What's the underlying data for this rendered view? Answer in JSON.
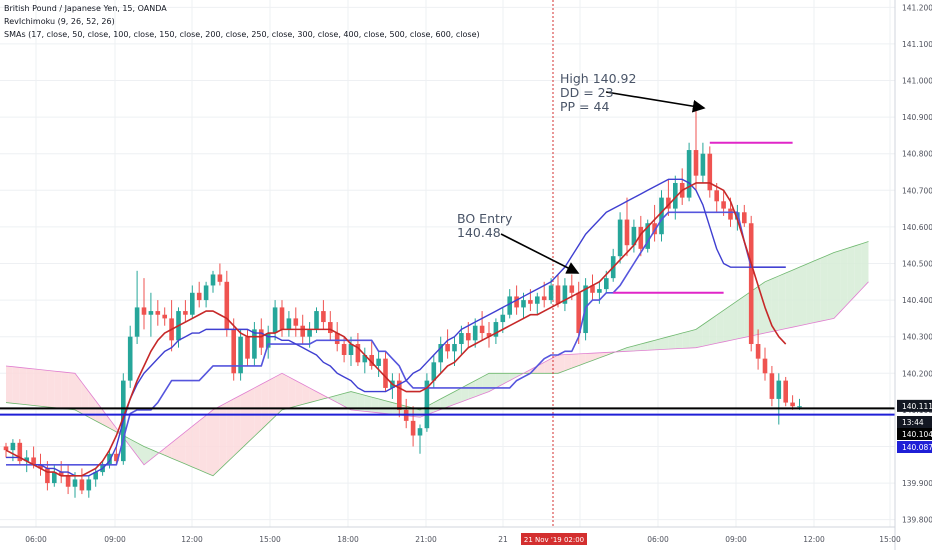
{
  "header": {
    "symbol": "British Pound / Japanese Yen, 15, OANDA",
    "ichimoku": "RevIchimoku (9, 26, 52, 26)",
    "smas": "SMAs (17, close, 50, close, 100, close, 150, close, 200, close, 250, close, 300, close, 400, close, 500, close, 600, close)"
  },
  "annotations": {
    "high": [
      "High 140.92",
      "DD = 23",
      "PP = 44"
    ],
    "bo_entry": [
      "BO Entry",
      "140.48"
    ]
  },
  "price_badges": [
    {
      "value": "140.111",
      "bg": "#131722",
      "fg": "#ffffff"
    },
    {
      "value": "13:44",
      "bg": "#131722",
      "fg": "#ffffff"
    },
    {
      "value": "140.104",
      "bg": "#000000",
      "fg": "#ffffff"
    },
    {
      "value": "140.087",
      "bg": "#1f1fd6",
      "fg": "#ffffff"
    }
  ],
  "crosshair_label": "21 Nov '19   02:00",
  "colors": {
    "up": "#26a69a",
    "down": "#ef5350",
    "sma_fast": "#c62828",
    "tenkan": "#3f3fd1",
    "kijun": "#5555dd",
    "cloud_bull": "#d6ecd6",
    "cloud_bear": "#fbd9dc",
    "annotation_line": "#e026c8",
    "crosshair": "#d32f2f"
  },
  "chart_data": {
    "type": "candlestick",
    "ylim": [
      139.78,
      141.22
    ],
    "y_ticks": [
      "141.200",
      "141.100",
      "141.000",
      "140.900",
      "140.800",
      "140.700",
      "140.600",
      "140.500",
      "140.400",
      "140.300",
      "140.200",
      "140.100",
      "140.000",
      "139.900",
      "139.800"
    ],
    "x_ticks": [
      "06:00",
      "09:00",
      "12:00",
      "15:00",
      "18:00",
      "21:00",
      "21",
      "02:00",
      "06:00",
      "09:00",
      "12:00",
      "15:00"
    ],
    "ohlc": [
      [
        140.0,
        140.01,
        139.97,
        139.99
      ],
      [
        139.99,
        140.02,
        139.96,
        140.01
      ],
      [
        140.01,
        140.02,
        139.95,
        139.96
      ],
      [
        139.96,
        139.99,
        139.93,
        139.97
      ],
      [
        139.97,
        140.0,
        139.94,
        139.95
      ],
      [
        139.95,
        139.98,
        139.92,
        139.94
      ],
      [
        139.94,
        139.96,
        139.88,
        139.9
      ],
      [
        139.9,
        139.95,
        139.89,
        139.93
      ],
      [
        139.93,
        139.96,
        139.9,
        139.92
      ],
      [
        139.92,
        139.95,
        139.87,
        139.89
      ],
      [
        139.89,
        139.93,
        139.86,
        139.91
      ],
      [
        139.91,
        139.94,
        139.87,
        139.88
      ],
      [
        139.88,
        139.92,
        139.86,
        139.91
      ],
      [
        139.91,
        139.94,
        139.89,
        139.93
      ],
      [
        139.93,
        139.96,
        139.92,
        139.95
      ],
      [
        139.95,
        139.99,
        139.94,
        139.98
      ],
      [
        139.98,
        140.0,
        139.95,
        139.96
      ],
      [
        139.96,
        140.2,
        139.95,
        140.18
      ],
      [
        140.18,
        140.33,
        140.16,
        140.3
      ],
      [
        140.3,
        140.48,
        140.28,
        140.38
      ],
      [
        140.38,
        140.46,
        140.32,
        140.36
      ],
      [
        140.36,
        140.42,
        140.3,
        140.37
      ],
      [
        140.37,
        140.4,
        140.33,
        140.36
      ],
      [
        140.36,
        140.38,
        140.33,
        140.35
      ],
      [
        140.35,
        140.4,
        140.26,
        140.29
      ],
      [
        140.29,
        140.38,
        140.27,
        140.37
      ],
      [
        140.37,
        140.4,
        140.34,
        140.36
      ],
      [
        140.36,
        140.44,
        140.35,
        140.42
      ],
      [
        140.42,
        140.45,
        140.38,
        140.4
      ],
      [
        140.4,
        140.45,
        140.38,
        140.44
      ],
      [
        140.44,
        140.48,
        140.42,
        140.47
      ],
      [
        140.47,
        140.5,
        140.44,
        140.45
      ],
      [
        140.45,
        140.48,
        140.3,
        140.32
      ],
      [
        140.32,
        140.35,
        140.18,
        140.2
      ],
      [
        140.2,
        140.32,
        140.18,
        140.3
      ],
      [
        140.3,
        140.32,
        140.22,
        140.24
      ],
      [
        140.24,
        140.34,
        140.22,
        140.32
      ],
      [
        140.32,
        140.35,
        140.25,
        140.27
      ],
      [
        140.27,
        140.33,
        140.24,
        140.31
      ],
      [
        140.31,
        140.4,
        140.29,
        140.38
      ],
      [
        140.38,
        140.4,
        140.3,
        140.32
      ],
      [
        140.32,
        140.37,
        140.3,
        140.35
      ],
      [
        140.35,
        140.38,
        140.3,
        140.33
      ],
      [
        140.33,
        140.36,
        140.28,
        140.3
      ],
      [
        140.3,
        140.34,
        140.27,
        140.32
      ],
      [
        140.32,
        140.38,
        140.31,
        140.37
      ],
      [
        140.37,
        140.4,
        140.32,
        140.34
      ],
      [
        140.34,
        140.37,
        140.29,
        140.31
      ],
      [
        140.31,
        140.34,
        140.26,
        140.28
      ],
      [
        140.28,
        140.3,
        140.23,
        140.25
      ],
      [
        140.25,
        140.3,
        140.22,
        140.28
      ],
      [
        140.28,
        140.31,
        140.22,
        140.23
      ],
      [
        140.23,
        140.27,
        140.2,
        140.25
      ],
      [
        140.25,
        140.29,
        140.21,
        140.22
      ],
      [
        140.22,
        140.26,
        140.19,
        140.24
      ],
      [
        140.24,
        140.26,
        140.15,
        140.16
      ],
      [
        140.16,
        140.2,
        140.13,
        140.18
      ],
      [
        140.18,
        140.2,
        140.08,
        140.1
      ],
      [
        140.1,
        140.13,
        140.05,
        140.07
      ],
      [
        140.07,
        140.11,
        140.0,
        140.03
      ],
      [
        140.03,
        140.06,
        139.98,
        140.05
      ],
      [
        140.05,
        140.2,
        140.04,
        140.18
      ],
      [
        140.18,
        140.25,
        140.16,
        140.23
      ],
      [
        140.23,
        140.3,
        140.2,
        140.28
      ],
      [
        140.28,
        140.32,
        140.24,
        140.26
      ],
      [
        140.26,
        140.3,
        140.22,
        140.28
      ],
      [
        140.28,
        140.33,
        140.25,
        140.31
      ],
      [
        140.31,
        140.34,
        140.27,
        140.29
      ],
      [
        140.29,
        140.35,
        140.27,
        140.33
      ],
      [
        140.33,
        140.37,
        140.29,
        140.31
      ],
      [
        140.31,
        140.34,
        140.27,
        140.3
      ],
      [
        140.3,
        140.35,
        140.28,
        140.34
      ],
      [
        140.34,
        140.38,
        140.31,
        140.36
      ],
      [
        140.36,
        140.43,
        140.35,
        140.41
      ],
      [
        140.41,
        140.44,
        140.36,
        140.38
      ],
      [
        140.38,
        140.42,
        140.35,
        140.4
      ],
      [
        140.4,
        140.43,
        140.37,
        140.39
      ],
      [
        140.39,
        140.42,
        140.36,
        140.41
      ],
      [
        140.41,
        140.45,
        140.38,
        140.4
      ],
      [
        140.4,
        140.46,
        140.39,
        140.44
      ],
      [
        140.44,
        140.47,
        140.38,
        140.39
      ],
      [
        140.39,
        140.46,
        140.37,
        140.44
      ],
      [
        140.44,
        140.47,
        140.4,
        140.42
      ],
      [
        140.42,
        140.45,
        140.28,
        140.31
      ],
      [
        140.31,
        140.46,
        140.29,
        140.44
      ],
      [
        140.44,
        140.47,
        140.4,
        140.42
      ],
      [
        140.42,
        140.45,
        140.39,
        140.43
      ],
      [
        140.43,
        140.48,
        140.42,
        140.46
      ],
      [
        140.46,
        140.54,
        140.45,
        140.52
      ],
      [
        140.52,
        140.64,
        140.5,
        140.62
      ],
      [
        140.62,
        140.68,
        140.52,
        140.55
      ],
      [
        140.55,
        140.62,
        140.53,
        140.6
      ],
      [
        140.6,
        140.63,
        140.52,
        140.54
      ],
      [
        140.54,
        140.62,
        140.53,
        140.61
      ],
      [
        140.61,
        140.66,
        140.56,
        140.58
      ],
      [
        140.58,
        140.7,
        140.56,
        140.68
      ],
      [
        140.68,
        140.73,
        140.63,
        140.65
      ],
      [
        140.65,
        140.74,
        140.62,
        140.72
      ],
      [
        140.72,
        140.76,
        140.66,
        140.68
      ],
      [
        140.68,
        140.83,
        140.67,
        140.81
      ],
      [
        140.81,
        140.92,
        140.7,
        140.74
      ],
      [
        140.74,
        140.83,
        140.72,
        140.8
      ],
      [
        140.8,
        140.82,
        140.68,
        140.7
      ],
      [
        140.7,
        140.72,
        140.64,
        140.67
      ],
      [
        140.67,
        140.7,
        140.63,
        140.65
      ],
      [
        140.65,
        140.68,
        140.6,
        140.62
      ],
      [
        140.62,
        140.66,
        140.59,
        140.64
      ],
      [
        140.64,
        140.66,
        140.6,
        140.61
      ],
      [
        140.61,
        140.63,
        140.26,
        140.28
      ],
      [
        140.28,
        140.32,
        140.21,
        140.24
      ],
      [
        140.24,
        140.27,
        140.18,
        140.2
      ],
      [
        140.2,
        140.22,
        140.11,
        140.13
      ],
      [
        140.13,
        140.2,
        140.06,
        140.18
      ],
      [
        140.18,
        140.19,
        140.11,
        140.12
      ],
      [
        140.12,
        140.14,
        140.1,
        140.11
      ],
      [
        140.11,
        140.13,
        140.1,
        140.11
      ]
    ],
    "sma17": [
      139.99,
      139.98,
      139.97,
      139.96,
      139.95,
      139.94,
      139.93,
      139.93,
      139.92,
      139.92,
      139.92,
      139.92,
      139.93,
      139.94,
      139.96,
      139.99,
      140.03,
      140.08,
      140.13,
      140.18,
      140.22,
      140.26,
      140.29,
      140.31,
      140.32,
      140.33,
      140.34,
      140.35,
      140.36,
      140.37,
      140.37,
      140.36,
      140.35,
      140.33,
      140.31,
      140.3,
      140.3,
      140.3,
      140.31,
      140.31,
      140.32,
      140.32,
      140.32,
      140.32,
      140.32,
      140.32,
      140.32,
      140.32,
      140.31,
      140.3,
      140.28,
      140.27,
      140.25,
      140.23,
      140.21,
      140.19,
      140.17,
      140.16,
      140.15,
      140.15,
      140.15,
      140.16,
      140.18,
      140.2,
      140.22,
      140.23,
      140.25,
      140.27,
      140.28,
      140.29,
      140.3,
      140.31,
      140.32,
      140.33,
      140.34,
      140.35,
      140.36,
      140.36,
      140.37,
      140.38,
      140.39,
      140.4,
      140.41,
      140.42,
      140.43,
      140.44,
      140.45,
      140.47,
      140.49,
      140.51,
      140.53,
      140.55,
      140.58,
      140.6,
      140.62,
      140.64,
      140.66,
      140.68,
      140.7,
      140.71,
      140.72,
      140.72,
      140.72,
      140.71,
      140.7,
      140.67,
      140.62,
      140.56,
      140.5,
      140.44,
      140.38,
      140.33,
      140.3,
      140.28
    ],
    "tenkan": [
      139.97,
      139.97,
      139.97,
      139.96,
      139.95,
      139.95,
      139.94,
      139.94,
      139.93,
      139.93,
      139.92,
      139.92,
      139.92,
      139.93,
      139.94,
      139.96,
      140.0,
      140.07,
      140.13,
      140.17,
      140.2,
      140.22,
      140.24,
      140.26,
      140.27,
      140.29,
      140.3,
      140.31,
      140.31,
      140.32,
      140.32,
      140.32,
      140.32,
      140.32,
      140.32,
      140.32,
      140.31,
      140.31,
      140.3,
      140.3,
      140.29,
      140.29,
      140.28,
      140.27,
      140.26,
      140.25,
      140.23,
      140.22,
      140.2,
      140.19,
      140.18,
      140.16,
      140.15,
      140.15,
      140.15,
      140.15,
      140.16,
      140.17,
      140.18,
      140.2,
      140.21,
      140.23,
      140.25,
      140.27,
      140.29,
      140.3,
      140.32,
      140.33,
      140.34,
      140.35,
      140.36,
      140.37,
      140.38,
      140.39,
      140.4,
      140.41,
      140.42,
      140.43,
      140.44,
      140.45,
      140.47,
      140.49,
      140.52,
      140.55,
      140.58,
      140.6,
      140.62,
      140.64,
      140.65,
      140.66,
      140.67,
      140.68,
      140.69,
      140.7,
      140.71,
      140.72,
      140.73,
      140.73,
      140.73,
      140.72,
      140.7,
      140.66,
      140.6,
      140.54,
      140.5,
      140.49,
      140.49,
      140.49,
      140.49,
      140.49,
      140.49,
      140.49,
      140.49,
      140.49
    ],
    "kijun": [
      139.95,
      139.95,
      139.95,
      139.95,
      139.95,
      139.95,
      139.95,
      139.95,
      139.95,
      139.95,
      139.95,
      139.95,
      139.95,
      139.95,
      139.95,
      139.95,
      139.95,
      140.02,
      140.09,
      140.1,
      140.1,
      140.1,
      140.12,
      140.15,
      140.18,
      140.18,
      140.18,
      140.18,
      140.18,
      140.2,
      140.22,
      140.22,
      140.22,
      140.22,
      140.22,
      140.22,
      140.22,
      140.22,
      140.28,
      140.28,
      140.28,
      140.28,
      140.28,
      140.28,
      140.28,
      140.29,
      140.29,
      140.29,
      140.29,
      140.29,
      140.29,
      140.29,
      140.29,
      140.29,
      140.26,
      140.26,
      140.24,
      140.22,
      140.18,
      140.16,
      140.16,
      140.16,
      140.16,
      140.16,
      140.16,
      140.16,
      140.16,
      140.16,
      140.16,
      140.16,
      140.16,
      140.16,
      140.16,
      140.16,
      140.18,
      140.19,
      140.2,
      140.22,
      140.24,
      140.25,
      140.25,
      140.26,
      140.26,
      140.3,
      140.38,
      140.4,
      140.4,
      140.42,
      140.42,
      140.44,
      140.47,
      140.5,
      140.53,
      140.56,
      140.59,
      140.62,
      140.64,
      140.64,
      140.64,
      140.64,
      140.64,
      140.64,
      140.64,
      140.64,
      140.64,
      140.64,
      140.64,
      140.56,
      140.49,
      140.49,
      140.49,
      140.49,
      140.49,
      140.49
    ],
    "cloud_x": [
      0,
      10,
      20,
      30,
      40,
      50,
      60,
      70,
      80,
      90,
      100,
      110,
      120,
      125
    ],
    "cloud_a": [
      140.12,
      140.1,
      140.0,
      139.92,
      140.1,
      140.15,
      140.1,
      140.2,
      140.2,
      140.27,
      140.32,
      140.45,
      140.53,
      140.56
    ],
    "cloud_b": [
      140.22,
      140.2,
      139.95,
      140.1,
      140.2,
      140.1,
      140.08,
      140.15,
      140.25,
      140.26,
      140.27,
      140.31,
      140.35,
      140.45
    ],
    "hlines": [
      {
        "y": 140.104,
        "color": "#000000"
      },
      {
        "y": 140.087,
        "color": "#1f1fd6"
      }
    ],
    "segments": [
      {
        "x0": 88,
        "x1": 104,
        "y": 140.42,
        "color": "#e026c8"
      },
      {
        "x0": 102,
        "x1": 114,
        "y": 140.83,
        "color": "#e026c8"
      }
    ]
  }
}
